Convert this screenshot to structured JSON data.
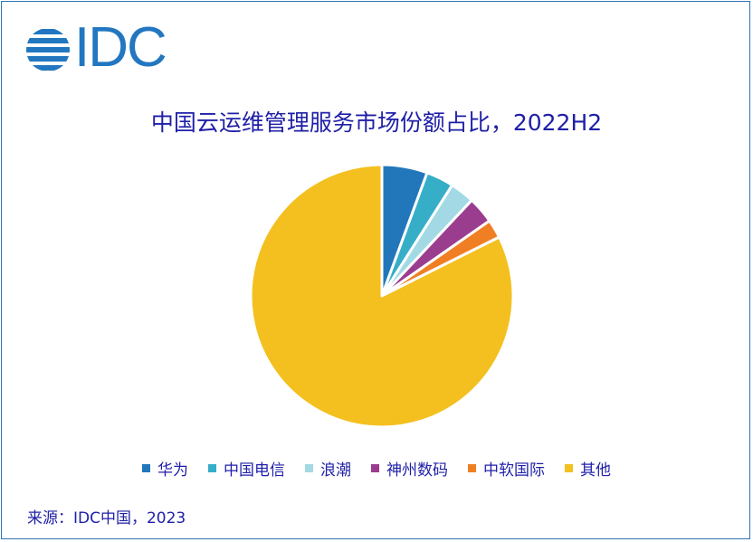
{
  "logo": {
    "text": "IDC",
    "color": "#2277c0"
  },
  "source": "来源：IDC中国，2023",
  "chart_data": {
    "type": "pie",
    "title": "中国云运维管理服务市场份额占比，2022H2",
    "start": "12 o'clock, clockwise",
    "legend_position": "bottom",
    "slices": [
      {
        "name": "华为",
        "value": 5.6,
        "color": "#2277bb"
      },
      {
        "name": "中国电信",
        "value": 3.4,
        "color": "#37aec8"
      },
      {
        "name": "浪潮",
        "value": 3.0,
        "color": "#a2d9e4"
      },
      {
        "name": "神州数码",
        "value": 3.3,
        "color": "#9b3d8f"
      },
      {
        "name": "中软国际",
        "value": 2.3,
        "color": "#f07f23"
      },
      {
        "name": "其他",
        "value": 82.4,
        "color": "#f4c01f"
      }
    ]
  }
}
